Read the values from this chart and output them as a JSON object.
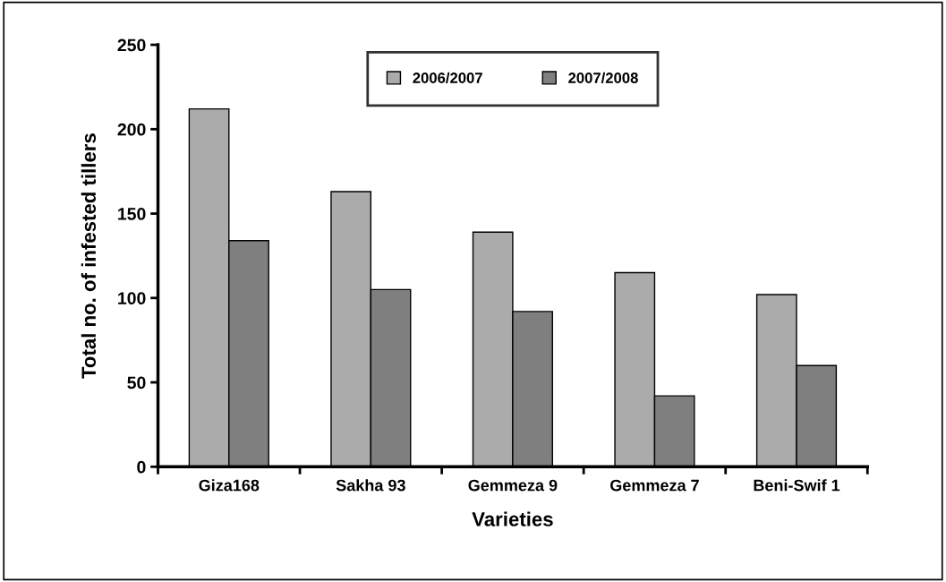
{
  "chart_data": {
    "type": "bar",
    "xlabel": "Varieties",
    "ylabel": "Total no. of infested tillers",
    "categories": [
      "Giza168",
      "Sakha 93",
      "Gemmeza 9",
      "Gemmeza 7",
      "Beni-Swif 1"
    ],
    "series": [
      {
        "name": "2006/2007",
        "color": "#ababab",
        "values": [
          212,
          163,
          139,
          115,
          102
        ]
      },
      {
        "name": "2007/2008",
        "color": "#7f7f7f",
        "values": [
          134,
          105,
          92,
          42,
          60
        ]
      }
    ],
    "ylim": [
      0,
      250
    ],
    "yticks": [
      0,
      50,
      100,
      150,
      200,
      250
    ],
    "grid": false,
    "legend": "top"
  }
}
